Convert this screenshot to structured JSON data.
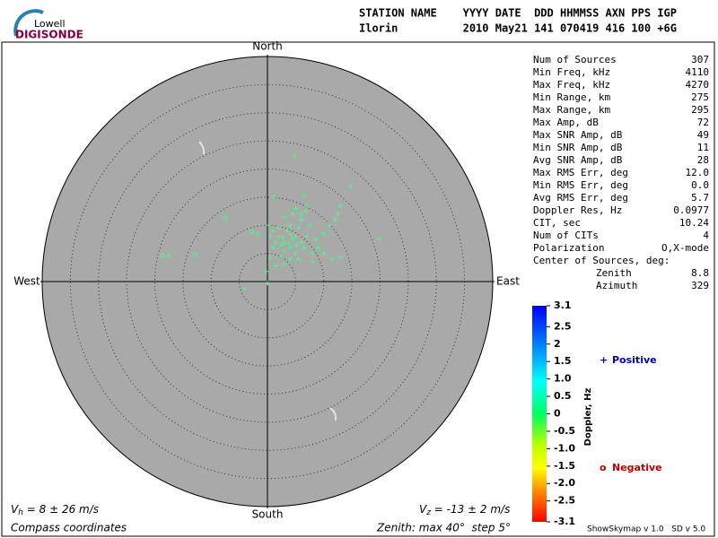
{
  "logo": {
    "top": "Lowell",
    "bottom": "DIGISONDE"
  },
  "header": {
    "fields": "STATION NAME    YYYY DATE  DDD HHMMSS AXN PPS IGP",
    "values": "Ilorin          2010 May21 141 070419 416 100 +6G"
  },
  "stats": [
    [
      "Num of Sources",
      "307"
    ],
    [
      "Min Freq, kHz",
      "4110"
    ],
    [
      "Max Freq, kHz",
      "4270"
    ],
    [
      "Min Range, km",
      "275"
    ],
    [
      "Max Range, km",
      "295"
    ],
    [
      "Max Amp, dB",
      "72"
    ],
    [
      "Max SNR Amp, dB",
      "49"
    ],
    [
      "Min SNR Amp, dB",
      "11"
    ],
    [
      "Avg SNR Amp, dB",
      "28"
    ],
    [
      "Max RMS Err, deg",
      "12.0"
    ],
    [
      "Min RMS Err, deg",
      "0.0"
    ],
    [
      "Avg RMS Err, deg",
      "5.7"
    ],
    [
      "Doppler Res, Hz",
      "0.0977"
    ],
    [
      "CIT, sec",
      "10.24"
    ],
    [
      "Num of CITs",
      "4"
    ],
    [
      "Polarization",
      "O,X-mode"
    ]
  ],
  "center_of_sources": {
    "label": "Center of Sources, deg:",
    "rows": [
      [
        "Zenith",
        "8.8"
      ],
      [
        "Azimuth",
        "329"
      ]
    ]
  },
  "footer": {
    "vh": {
      "symbol": "V",
      "sub": "h",
      "text": " = 8 ± 26 m/s"
    },
    "vz": {
      "symbol": "V",
      "sub": "z",
      "text": " = -13 ± 2 m/s"
    },
    "coords": "Compass coordinates",
    "zenith_note": "Zenith: max 40°  step 5°",
    "version": "ShowSkymap v 1.0   SD v 5.0"
  },
  "chart_data": {
    "type": "scatter",
    "directions": {
      "north": "North",
      "south": "South",
      "east": "East",
      "west": "West"
    },
    "rlim": [
      0,
      40
    ],
    "rticks": [
      5,
      10,
      15,
      20,
      25,
      30,
      35
    ],
    "marker_color": "#40ff80",
    "series": [
      {
        "name": "Positive",
        "color": "#0000c0",
        "marker": "+",
        "x": [
          2,
          3,
          4,
          5,
          3.5,
          2.5,
          4.5,
          6,
          1.5,
          3,
          5,
          6.5,
          7,
          2,
          4,
          5.5,
          6,
          7.5,
          3,
          4.5,
          6.8,
          7,
          6.5,
          1,
          0.5,
          1,
          0.2,
          2.5,
          4,
          5.5,
          8,
          9,
          8.5,
          10,
          11,
          12.5,
          13,
          12,
          10,
          11.5,
          3,
          1.5,
          0.5,
          8,
          6,
          5,
          3.8,
          4.2,
          2.8,
          5.2,
          4.8,
          14.8,
          19.9,
          -17.5,
          1.1,
          -4.1,
          0,
          -0.2,
          13
        ],
        "y": [
          8,
          7,
          6,
          8,
          9,
          6.5,
          7.5,
          7,
          7,
          5.5,
          5,
          6,
          8,
          9.5,
          10,
          9.5,
          11,
          10,
          11.5,
          12,
          12.5,
          13.5,
          15.3,
          6,
          8,
          9,
          10,
          4.5,
          4,
          4,
          5,
          6,
          7.5,
          8.5,
          10,
          12,
          13.5,
          11,
          5,
          4,
          3,
          2.8,
          4.2,
          3.5,
          12,
          13,
          6.7,
          8.3,
          7.8,
          6.4,
          22.3,
          16.9,
          7.6,
          4.6,
          15,
          -1.3,
          -0.3,
          1.8,
          4.3
        ]
      },
      {
        "name": "Negative",
        "color": "#c00000",
        "marker": "o",
        "x": [
          -18.6,
          -12.9,
          -7.5,
          -2.8,
          -1.7
        ],
        "y": [
          4.6,
          4.8,
          11.2,
          8.8,
          8.3
        ]
      }
    ],
    "colorbar": {
      "label": "Doppler, Hz",
      "lim": [
        -3.1,
        3.1
      ],
      "ticks": [
        3.1,
        2.5,
        2,
        1.5,
        {
          "value": 1,
          "label": "1.0"
        },
        0.5,
        0,
        -0.5,
        {
          "value": -1,
          "label": "-1.0"
        },
        -1.5,
        {
          "value": -2,
          "label": "-2.0"
        },
        -2.5,
        -3.1
      ]
    }
  }
}
